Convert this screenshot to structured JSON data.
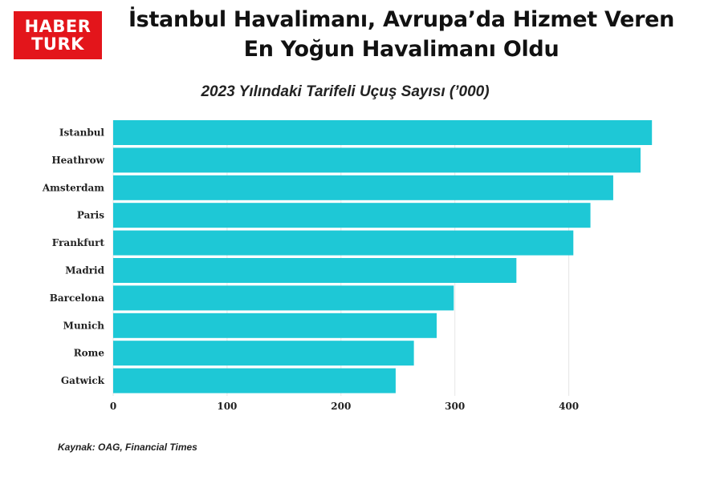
{
  "logo": {
    "line1": "HABER",
    "line2": "TURK"
  },
  "header": {
    "title_line1": "İstanbul Havalimanı, Avrupa’da Hizmet Veren",
    "title_line2": "En Yoğun Havalimanı Oldu"
  },
  "footer": {
    "source": "Kaynak: OAG, Financial Times"
  },
  "colors": {
    "bar": "#1ec8d6",
    "brand": "#e3151b",
    "grid": "#e6e6e6"
  },
  "chart_data": {
    "type": "bar",
    "orientation": "horizontal",
    "title": "2023 Yılındaki Tarifeli Uçuş Sayısı (’000)",
    "categories": [
      "Istanbul",
      "Heathrow",
      "Amsterdam",
      "Paris",
      "Frankfurt",
      "Madrid",
      "Barcelona",
      "Munich",
      "Rome",
      "Gatwick"
    ],
    "values": [
      473,
      463,
      439,
      419,
      404,
      354,
      299,
      284,
      264,
      248
    ],
    "xlim": [
      0,
      480
    ],
    "xticks": [
      0,
      100,
      200,
      300,
      400
    ],
    "grid": true
  }
}
